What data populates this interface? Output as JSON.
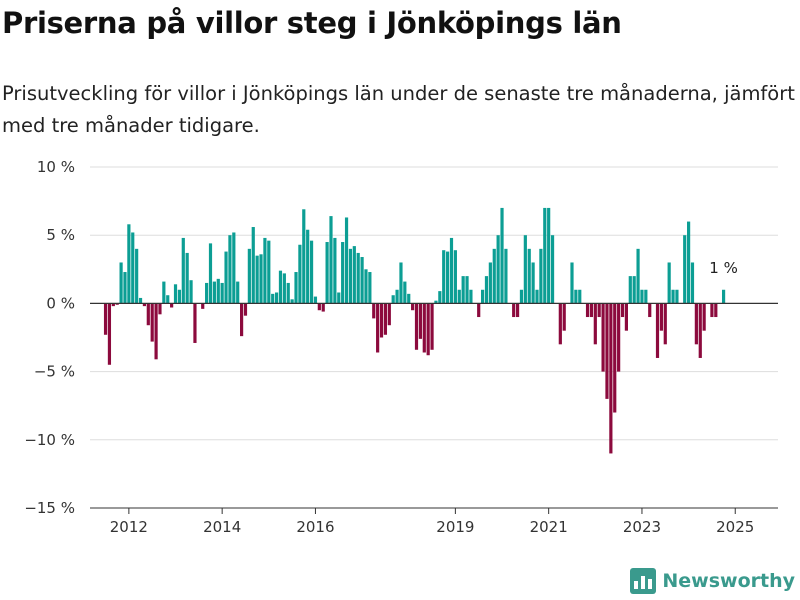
{
  "header": {
    "title": "Priserna på villor steg i Jönköpings län",
    "subtitle": "Prisutveckling för villor i Jönköpings län under de senaste tre månaderna, jämfört med tre månader tidigare."
  },
  "brand": {
    "name": "Newsworthy",
    "color": "#3a9a8d"
  },
  "chart_data": {
    "type": "bar",
    "x_start": "2011-07",
    "x_interval": "month",
    "xlim": [
      "2011-03",
      "2025-12"
    ],
    "ylim": [
      -15,
      10
    ],
    "y_ticks": [
      {
        "value": 10,
        "label": "10 %"
      },
      {
        "value": 5,
        "label": "5 %"
      },
      {
        "value": 0,
        "label": "0 %"
      },
      {
        "value": -5,
        "label": "−5 %"
      },
      {
        "value": -10,
        "label": "−10 %"
      },
      {
        "value": -15,
        "label": "−15 %"
      }
    ],
    "x_ticks": [
      {
        "date": "2012-01",
        "label": "2012"
      },
      {
        "date": "2014-01",
        "label": "2014"
      },
      {
        "date": "2016-01",
        "label": "2016"
      },
      {
        "date": "2019-01",
        "label": "2019"
      },
      {
        "date": "2021-01",
        "label": "2021"
      },
      {
        "date": "2023-01",
        "label": "2023"
      },
      {
        "date": "2025-01",
        "label": "2025"
      }
    ],
    "grid": true,
    "colors": {
      "positive": "#0c9e94",
      "negative": "#8c0a3d"
    },
    "last_label": "1 %",
    "values": [
      -2.3,
      -4.5,
      -0.2,
      -0.1,
      3,
      2.3,
      5.8,
      5.2,
      4,
      0.4,
      -0.2,
      -1.6,
      -2.8,
      -4.1,
      -0.8,
      1.6,
      0.6,
      -0.3,
      1.4,
      1,
      4.8,
      3.7,
      1.7,
      -2.9,
      0,
      -0.4,
      1.5,
      4.4,
      1.6,
      1.8,
      1.5,
      3.8,
      5,
      5.2,
      1.6,
      -2.4,
      -0.9,
      4,
      5.6,
      3.5,
      3.6,
      4.8,
      4.6,
      0.7,
      0.8,
      2.4,
      2.2,
      1.5,
      0.3,
      2.3,
      4.3,
      6.9,
      5.4,
      4.6,
      0.5,
      -0.5,
      -0.6,
      4.5,
      6.4,
      4.8,
      0.8,
      4.5,
      6.3,
      4,
      4.2,
      3.7,
      3.4,
      2.5,
      2.3,
      -1.1,
      -3.6,
      -2.5,
      -2.3,
      -1.6,
      0.6,
      1,
      3,
      1.6,
      0.7,
      -0.5,
      -3.4,
      -2.6,
      -3.6,
      -3.8,
      -3.4,
      0.2,
      0.9,
      3.9,
      3.8,
      4.8,
      3.9,
      1,
      2,
      2,
      1,
      0,
      -1,
      1,
      2,
      3,
      4,
      5,
      7,
      4,
      0,
      -1,
      -1,
      1,
      5,
      4,
      3,
      1,
      4,
      7,
      7,
      5,
      0,
      -3,
      -2,
      0,
      3,
      1,
      1,
      0,
      -1,
      -1,
      -3,
      -1,
      -5,
      -7,
      -11,
      -8,
      -5,
      -1,
      -2,
      2,
      2,
      4,
      1,
      1,
      -1,
      0,
      -4,
      -2,
      -3,
      3,
      1,
      1,
      0,
      5,
      6,
      3,
      -3,
      -4,
      -2,
      0,
      -1,
      -1,
      0,
      1
    ]
  }
}
